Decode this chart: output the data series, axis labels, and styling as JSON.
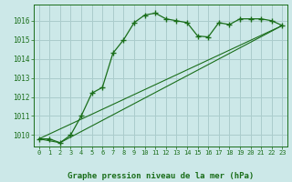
{
  "title": "Graphe pression niveau de la mer (hPa)",
  "background_color": "#cce8e8",
  "grid_color": "#aacccc",
  "line_color": "#1a6e1a",
  "ylim": [
    1009.4,
    1016.85
  ],
  "xlim": [
    -0.5,
    23.5
  ],
  "yticks": [
    1010,
    1011,
    1012,
    1013,
    1014,
    1015,
    1016
  ],
  "xticks": [
    0,
    1,
    2,
    3,
    4,
    5,
    6,
    7,
    8,
    9,
    10,
    11,
    12,
    13,
    14,
    15,
    16,
    17,
    18,
    19,
    20,
    21,
    22,
    23
  ],
  "series_main_x": [
    0,
    1,
    2,
    3,
    4,
    5,
    6,
    7,
    8,
    9,
    10,
    11,
    12,
    13,
    14,
    15,
    16,
    17,
    18,
    19,
    20,
    21,
    22,
    23
  ],
  "series_main_y": [
    1009.8,
    1009.8,
    1009.6,
    1010.0,
    1011.0,
    1012.2,
    1012.5,
    1014.3,
    1015.0,
    1015.9,
    1016.3,
    1016.4,
    1016.1,
    1016.0,
    1015.9,
    1015.2,
    1015.15,
    1015.9,
    1015.8,
    1016.1,
    1016.1,
    1016.1,
    1016.0,
    1015.75
  ],
  "trend1_x": [
    0,
    23
  ],
  "trend1_y": [
    1009.8,
    1015.75
  ],
  "trend2_x": [
    0,
    2,
    23
  ],
  "trend2_y": [
    1009.8,
    1009.6,
    1015.75
  ]
}
